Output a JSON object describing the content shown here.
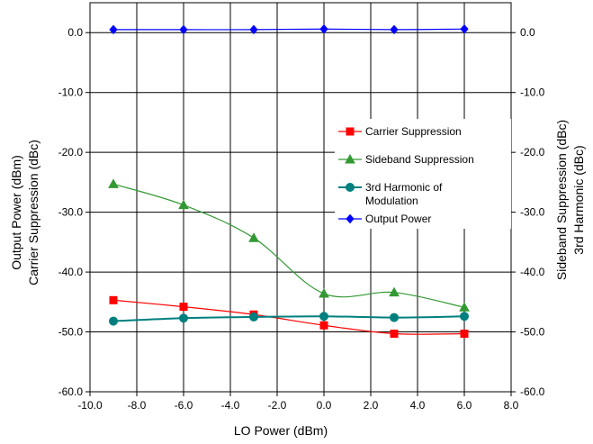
{
  "chart_data": {
    "type": "line",
    "x": [
      -9,
      -6,
      -3,
      0,
      3,
      6
    ],
    "series": [
      {
        "name": "Carrier Suppression",
        "color": "#ff0000",
        "marker": "square",
        "values": [
          -44.7,
          -45.8,
          -47.1,
          -48.9,
          -50.3,
          -50.3
        ]
      },
      {
        "name": "Sideband Suppression",
        "color": "#339933",
        "marker": "triangle",
        "values": [
          -25.3,
          -28.8,
          -34.3,
          -43.6,
          -43.4,
          -45.9
        ]
      },
      {
        "name": "3rd Harmonic of Modulation",
        "color": "#007f7f",
        "marker": "circle",
        "values": [
          -48.2,
          -47.7,
          -47.5,
          -47.4,
          -47.6,
          -47.4
        ]
      },
      {
        "name": "Output Power",
        "color": "#0000ff",
        "marker": "diamond",
        "values": [
          0.5,
          0.5,
          0.5,
          0.6,
          0.5,
          0.6
        ]
      }
    ],
    "xlabel": "LO Power (dBm)",
    "ylabel_left": [
      "Output Power (dBm)",
      "Carrier Suppression (dBc)"
    ],
    "ylabel_right": [
      "Sideband Suppression (dBc)",
      "3rd Harmonic (dBc)"
    ],
    "xlim": [
      -10,
      8
    ],
    "ylim": [
      -60,
      5
    ],
    "xticks": [
      "-10.0",
      "-8.0",
      "-6.0",
      "-4.0",
      "-2.0",
      "0.0",
      "2.0",
      "4.0",
      "6.0",
      "8.0"
    ],
    "yticks": [
      "-60.0",
      "-50.0",
      "-40.0",
      "-30.0",
      "-20.0",
      "-10.0",
      "0.0"
    ],
    "grid": true,
    "legend_position": "right"
  }
}
